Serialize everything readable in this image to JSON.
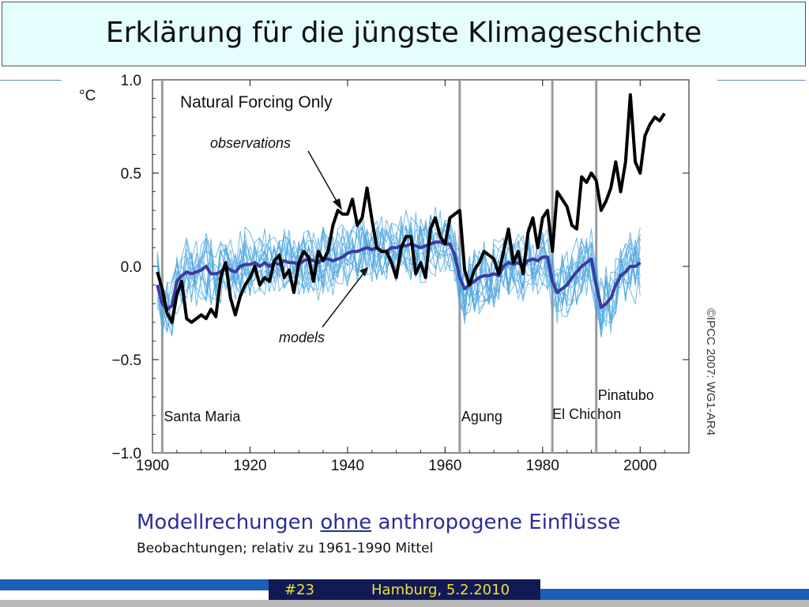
{
  "slide": {
    "title": "Erklärung für die jüngste Klimageschichte",
    "subtitle_pre": "Modellrechungen ",
    "subtitle_em": "ohne",
    "subtitle_post": " anthropogene Einflüsse",
    "caption": "Beobachtungen; relativ zu 1961-1990 Mittel",
    "footer_number": "#23",
    "footer_place_date": "Hamburg, 5.2.2010"
  },
  "colors": {
    "title_bg": "#e4fdfd",
    "observations": "#000000",
    "model_mean": "#3a3c9e",
    "model_runs": "#4fa8e0",
    "eruption_lines": "#9a9a9a",
    "subtitle": "#2a2e96",
    "footer_text": "#f2e030"
  },
  "chart_data": {
    "type": "line",
    "title": "Natural Forcing Only",
    "unit_label": "°C",
    "xlabel": "",
    "ylabel": "",
    "xlim": [
      1900,
      2010
    ],
    "ylim": [
      -1.0,
      1.0
    ],
    "x_ticks": [
      1900,
      1920,
      1940,
      1960,
      1980,
      2000
    ],
    "y_ticks": [
      1.0,
      0.5,
      0.0,
      -0.5,
      -1.0
    ],
    "y_tick_labels": [
      "1.0",
      "0.5",
      "0.0",
      "−0.5",
      "−1.0"
    ],
    "annotations": [
      "observations",
      "models"
    ],
    "copyright": "©IPCC 2007: WG1-AR4",
    "volcanic_eruptions": [
      {
        "name": "Santa Maria",
        "year": 1902
      },
      {
        "name": "Agung",
        "year": 1963
      },
      {
        "name": "El Chichon",
        "year": 1982
      },
      {
        "name": "Pinatubo",
        "year": 1991
      }
    ],
    "series": [
      {
        "name": "observations",
        "x": [
          1901,
          1902,
          1903,
          1904,
          1905,
          1906,
          1907,
          1908,
          1909,
          1910,
          1911,
          1912,
          1913,
          1914,
          1915,
          1916,
          1917,
          1918,
          1919,
          1920,
          1921,
          1922,
          1923,
          1924,
          1925,
          1926,
          1927,
          1928,
          1929,
          1930,
          1931,
          1932,
          1933,
          1934,
          1935,
          1936,
          1937,
          1938,
          1939,
          1940,
          1941,
          1942,
          1943,
          1944,
          1945,
          1946,
          1947,
          1948,
          1949,
          1950,
          1951,
          1952,
          1953,
          1954,
          1955,
          1956,
          1957,
          1958,
          1959,
          1960,
          1961,
          1962,
          1963,
          1964,
          1965,
          1966,
          1967,
          1968,
          1969,
          1970,
          1971,
          1972,
          1973,
          1974,
          1975,
          1976,
          1977,
          1978,
          1979,
          1980,
          1981,
          1982,
          1983,
          1984,
          1985,
          1986,
          1987,
          1988,
          1989,
          1990,
          1991,
          1992,
          1993,
          1994,
          1995,
          1996,
          1997,
          1998,
          1999,
          2000,
          2001,
          2002,
          2003,
          2004,
          2005
        ],
        "values": [
          -0.03,
          -0.12,
          -0.25,
          -0.3,
          -0.15,
          -0.08,
          -0.28,
          -0.3,
          -0.28,
          -0.26,
          -0.28,
          -0.23,
          -0.27,
          -0.06,
          0.02,
          -0.17,
          -0.26,
          -0.16,
          -0.1,
          -0.06,
          0.0,
          -0.1,
          -0.06,
          -0.08,
          0.03,
          0.06,
          -0.06,
          -0.02,
          -0.14,
          0.02,
          0.08,
          0.05,
          -0.08,
          0.08,
          0.03,
          0.08,
          0.22,
          0.3,
          0.28,
          0.28,
          0.36,
          0.22,
          0.26,
          0.42,
          0.25,
          0.1,
          0.08,
          0.08,
          0.02,
          -0.06,
          0.1,
          0.16,
          0.16,
          -0.04,
          0.02,
          -0.06,
          0.2,
          0.26,
          0.16,
          0.12,
          0.26,
          0.28,
          0.3,
          -0.02,
          -0.1,
          -0.02,
          0.02,
          0.08,
          0.06,
          0.04,
          -0.04,
          0.08,
          0.2,
          0.02,
          0.08,
          -0.04,
          0.18,
          0.26,
          0.1,
          0.26,
          0.3,
          0.08,
          0.4,
          0.36,
          0.32,
          0.22,
          0.2,
          0.48,
          0.45,
          0.5,
          0.46,
          0.3,
          0.35,
          0.42,
          0.56,
          0.4,
          0.56,
          0.92,
          0.56,
          0.5,
          0.7,
          0.76,
          0.8,
          0.78,
          0.82
        ]
      },
      {
        "name": "models",
        "x": [
          1901,
          1902,
          1903,
          1904,
          1905,
          1906,
          1907,
          1908,
          1909,
          1910,
          1911,
          1912,
          1913,
          1914,
          1915,
          1916,
          1917,
          1918,
          1919,
          1920,
          1921,
          1922,
          1923,
          1924,
          1925,
          1926,
          1927,
          1928,
          1929,
          1930,
          1931,
          1932,
          1933,
          1934,
          1935,
          1936,
          1937,
          1938,
          1939,
          1940,
          1941,
          1942,
          1943,
          1944,
          1945,
          1946,
          1947,
          1948,
          1949,
          1950,
          1951,
          1952,
          1953,
          1954,
          1955,
          1956,
          1957,
          1958,
          1959,
          1960,
          1961,
          1962,
          1963,
          1964,
          1965,
          1966,
          1967,
          1968,
          1969,
          1970,
          1971,
          1972,
          1973,
          1974,
          1975,
          1976,
          1977,
          1978,
          1979,
          1980,
          1981,
          1982,
          1983,
          1984,
          1985,
          1986,
          1987,
          1988,
          1989,
          1990,
          1991,
          1992,
          1993,
          1994,
          1995,
          1996,
          1997,
          1998,
          1999,
          2000
        ],
        "values": [
          -0.1,
          -0.2,
          -0.23,
          -0.21,
          -0.08,
          -0.05,
          -0.03,
          -0.04,
          -0.03,
          -0.02,
          0.0,
          -0.04,
          -0.04,
          -0.03,
          0.0,
          -0.02,
          -0.03,
          0.0,
          0.01,
          0.01,
          0.02,
          0.0,
          0.02,
          0.0,
          0.02,
          0.01,
          0.03,
          0.02,
          0.02,
          0.01,
          0.03,
          0.04,
          0.03,
          0.02,
          0.04,
          0.04,
          0.03,
          0.04,
          0.05,
          0.07,
          0.08,
          0.08,
          0.09,
          0.1,
          0.09,
          0.1,
          0.08,
          0.08,
          0.1,
          0.1,
          0.11,
          0.11,
          0.12,
          0.11,
          0.1,
          0.11,
          0.12,
          0.13,
          0.13,
          0.12,
          0.12,
          0.06,
          -0.06,
          -0.12,
          -0.1,
          -0.08,
          -0.06,
          -0.05,
          -0.05,
          -0.04,
          -0.05,
          0.0,
          0.02,
          0.01,
          0.02,
          0.0,
          0.03,
          0.04,
          0.03,
          0.05,
          0.05,
          -0.08,
          -0.14,
          -0.12,
          -0.1,
          -0.06,
          -0.03,
          0.0,
          0.02,
          0.04,
          -0.1,
          -0.22,
          -0.2,
          -0.17,
          -0.1,
          -0.05,
          -0.03,
          0.0,
          0.0,
          0.02
        ]
      }
    ]
  }
}
